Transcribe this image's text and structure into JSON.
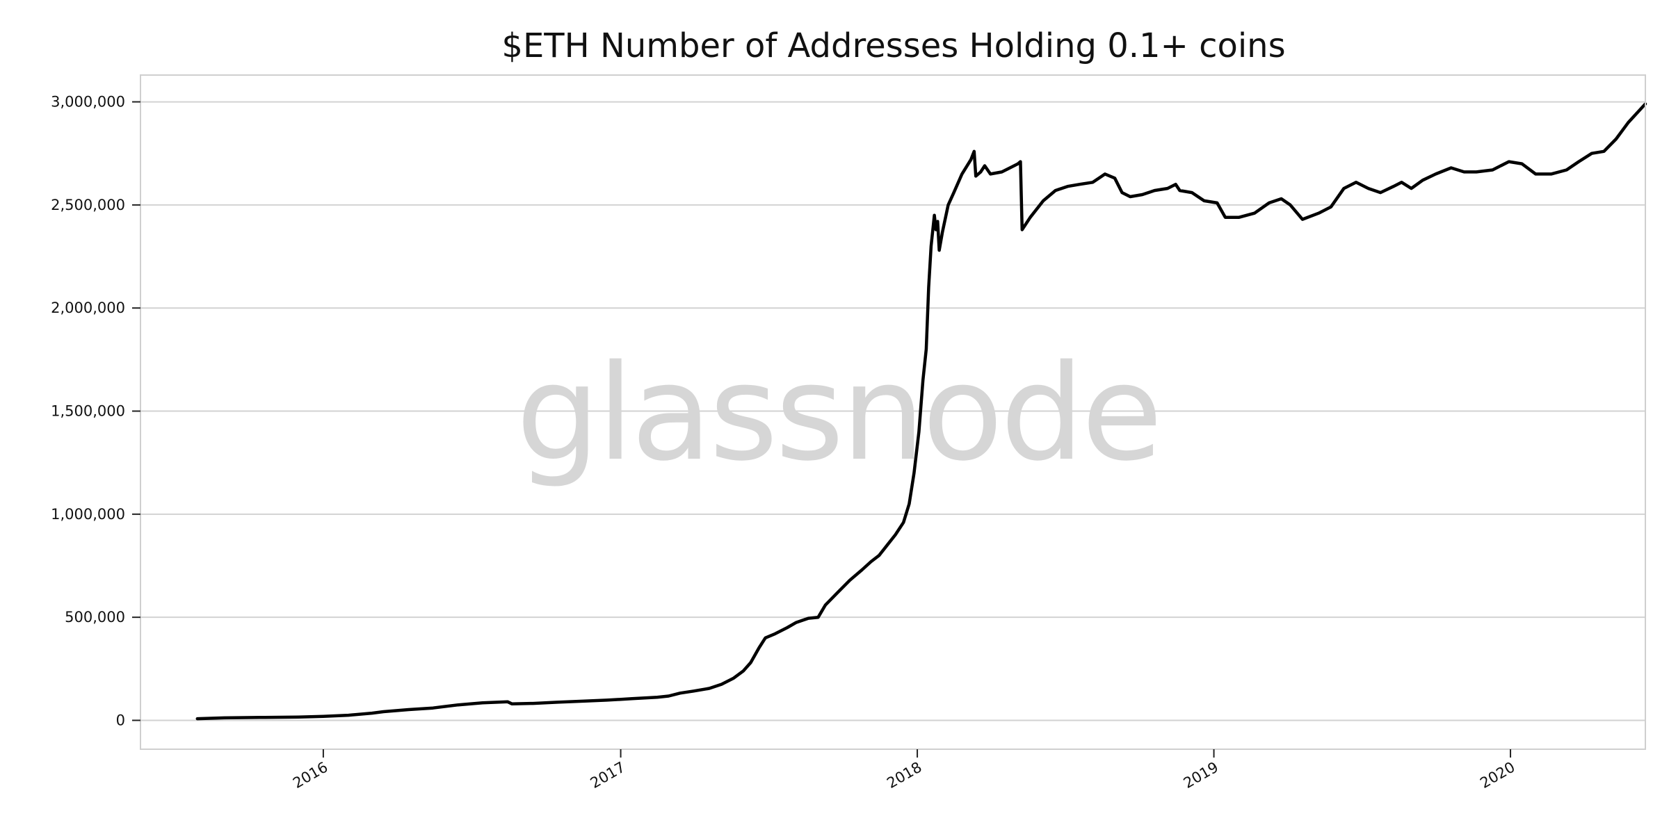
{
  "watermark": "glassnode",
  "colors": {
    "line": "#000000",
    "grid": "#d2d2d2",
    "frame": "#cfcfcf",
    "watermark": "#d6d6d6"
  },
  "chart_data": {
    "type": "line",
    "title": "$ETH Number of Addresses Holding 0.1+ coins",
    "xlabel": "",
    "ylabel": "",
    "grid": "horizontal",
    "xlim": [
      "2015-05-21",
      "2020-06-15"
    ],
    "ylim": [
      -140000,
      3130000
    ],
    "y_ticks": [
      {
        "value": 0,
        "label": "0"
      },
      {
        "value": 500000,
        "label": "500,000"
      },
      {
        "value": 1000000,
        "label": "1,000,000"
      },
      {
        "value": 1500000,
        "label": "1,500,000"
      },
      {
        "value": 2000000,
        "label": "2,000,000"
      },
      {
        "value": 2500000,
        "label": "2,500,000"
      },
      {
        "value": 3000000,
        "label": "3,000,000"
      }
    ],
    "x_ticks": [
      {
        "value": "2016-01-01",
        "label": "2016"
      },
      {
        "value": "2017-01-01",
        "label": "2017"
      },
      {
        "value": "2018-01-01",
        "label": "2018"
      },
      {
        "value": "2019-01-01",
        "label": "2019"
      },
      {
        "value": "2020-01-01",
        "label": "2020"
      }
    ],
    "series": [
      {
        "points": [
          [
            "2015-07-30",
            8000
          ],
          [
            "2015-09-01",
            12000
          ],
          [
            "2015-10-15",
            14000
          ],
          [
            "2015-12-01",
            16000
          ],
          [
            "2016-01-01",
            19000
          ],
          [
            "2016-02-01",
            25000
          ],
          [
            "2016-03-01",
            35000
          ],
          [
            "2016-03-15",
            42000
          ],
          [
            "2016-04-15",
            52000
          ],
          [
            "2016-05-15",
            60000
          ],
          [
            "2016-06-15",
            75000
          ],
          [
            "2016-07-15",
            85000
          ],
          [
            "2016-08-15",
            90000
          ],
          [
            "2016-08-20",
            80000
          ],
          [
            "2016-09-15",
            82000
          ],
          [
            "2016-10-15",
            88000
          ],
          [
            "2016-11-15",
            93000
          ],
          [
            "2016-12-15",
            98000
          ],
          [
            "2017-01-15",
            105000
          ],
          [
            "2017-02-15",
            112000
          ],
          [
            "2017-03-01",
            118000
          ],
          [
            "2017-03-15",
            132000
          ],
          [
            "2017-04-01",
            142000
          ],
          [
            "2017-04-20",
            155000
          ],
          [
            "2017-05-05",
            175000
          ],
          [
            "2017-05-20",
            205000
          ],
          [
            "2017-06-01",
            240000
          ],
          [
            "2017-06-10",
            280000
          ],
          [
            "2017-06-20",
            350000
          ],
          [
            "2017-06-28",
            400000
          ],
          [
            "2017-07-10",
            420000
          ],
          [
            "2017-07-25",
            450000
          ],
          [
            "2017-08-05",
            475000
          ],
          [
            "2017-08-20",
            495000
          ],
          [
            "2017-09-01",
            500000
          ],
          [
            "2017-09-10",
            560000
          ],
          [
            "2017-09-25",
            620000
          ],
          [
            "2017-10-10",
            680000
          ],
          [
            "2017-10-25",
            730000
          ],
          [
            "2017-11-05",
            770000
          ],
          [
            "2017-11-15",
            800000
          ],
          [
            "2017-11-25",
            850000
          ],
          [
            "2017-12-05",
            900000
          ],
          [
            "2017-12-15",
            960000
          ],
          [
            "2017-12-22",
            1050000
          ],
          [
            "2017-12-28",
            1200000
          ],
          [
            "2018-01-03",
            1400000
          ],
          [
            "2018-01-08",
            1650000
          ],
          [
            "2018-01-12",
            1800000
          ],
          [
            "2018-01-15",
            2100000
          ],
          [
            "2018-01-18",
            2300000
          ],
          [
            "2018-01-22",
            2450000
          ],
          [
            "2018-01-24",
            2380000
          ],
          [
            "2018-01-26",
            2420000
          ],
          [
            "2018-01-28",
            2280000
          ],
          [
            "2018-02-01",
            2370000
          ],
          [
            "2018-02-08",
            2500000
          ],
          [
            "2018-02-15",
            2560000
          ],
          [
            "2018-02-25",
            2650000
          ],
          [
            "2018-03-08",
            2720000
          ],
          [
            "2018-03-12",
            2760000
          ],
          [
            "2018-03-14",
            2640000
          ],
          [
            "2018-03-20",
            2660000
          ],
          [
            "2018-03-25",
            2690000
          ],
          [
            "2018-04-01",
            2650000
          ],
          [
            "2018-04-15",
            2660000
          ],
          [
            "2018-04-25",
            2680000
          ],
          [
            "2018-05-05",
            2700000
          ],
          [
            "2018-05-08",
            2710000
          ],
          [
            "2018-05-10",
            2380000
          ],
          [
            "2018-05-20",
            2440000
          ],
          [
            "2018-06-05",
            2520000
          ],
          [
            "2018-06-20",
            2570000
          ],
          [
            "2018-07-05",
            2590000
          ],
          [
            "2018-07-20",
            2600000
          ],
          [
            "2018-08-05",
            2610000
          ],
          [
            "2018-08-20",
            2650000
          ],
          [
            "2018-09-01",
            2630000
          ],
          [
            "2018-09-10",
            2560000
          ],
          [
            "2018-09-20",
            2540000
          ],
          [
            "2018-10-05",
            2550000
          ],
          [
            "2018-10-20",
            2570000
          ],
          [
            "2018-11-05",
            2580000
          ],
          [
            "2018-11-15",
            2600000
          ],
          [
            "2018-11-20",
            2570000
          ],
          [
            "2018-12-05",
            2560000
          ],
          [
            "2018-12-20",
            2520000
          ],
          [
            "2019-01-05",
            2510000
          ],
          [
            "2019-01-15",
            2440000
          ],
          [
            "2019-02-01",
            2440000
          ],
          [
            "2019-02-20",
            2460000
          ],
          [
            "2019-03-10",
            2510000
          ],
          [
            "2019-03-25",
            2530000
          ],
          [
            "2019-04-05",
            2500000
          ],
          [
            "2019-04-20",
            2430000
          ],
          [
            "2019-05-10",
            2460000
          ],
          [
            "2019-05-25",
            2490000
          ],
          [
            "2019-06-10",
            2580000
          ],
          [
            "2019-06-25",
            2610000
          ],
          [
            "2019-07-10",
            2580000
          ],
          [
            "2019-07-25",
            2560000
          ],
          [
            "2019-08-10",
            2590000
          ],
          [
            "2019-08-20",
            2610000
          ],
          [
            "2019-09-01",
            2580000
          ],
          [
            "2019-09-15",
            2620000
          ],
          [
            "2019-10-01",
            2650000
          ],
          [
            "2019-10-20",
            2680000
          ],
          [
            "2019-11-05",
            2660000
          ],
          [
            "2019-11-20",
            2660000
          ],
          [
            "2019-12-10",
            2670000
          ],
          [
            "2019-12-30",
            2710000
          ],
          [
            "2020-01-15",
            2700000
          ],
          [
            "2020-02-01",
            2650000
          ],
          [
            "2020-02-20",
            2650000
          ],
          [
            "2020-03-10",
            2670000
          ],
          [
            "2020-03-25",
            2710000
          ],
          [
            "2020-04-10",
            2750000
          ],
          [
            "2020-04-25",
            2760000
          ],
          [
            "2020-05-10",
            2820000
          ],
          [
            "2020-05-25",
            2900000
          ],
          [
            "2020-06-15",
            2990000
          ]
        ]
      }
    ]
  }
}
